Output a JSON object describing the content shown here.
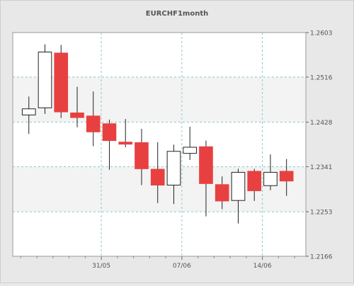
{
  "chart_data": {
    "type": "candlestick",
    "title": "EURCHF1month",
    "xlabel": "",
    "ylabel": "",
    "ylim": [
      1.2166,
      1.2603
    ],
    "y_ticks": [
      "1.2603",
      "1.2516",
      "1.2428",
      "1.2341",
      "1.2253",
      "1.2166"
    ],
    "x_ticks": [
      {
        "label": "31/05",
        "index": 4.5
      },
      {
        "label": "07/06",
        "index": 9.5
      },
      {
        "label": "14/06",
        "index": 14.5
      }
    ],
    "grid": true,
    "colors": {
      "up": "#ffffff",
      "down": "#e84040",
      "grid": "#8ec8c8",
      "background": "#ffffff",
      "frame": "#e8e8e8"
    },
    "candles": [
      {
        "open": 1.2442,
        "high": 1.2478,
        "low": 1.2405,
        "close": 1.2454
      },
      {
        "open": 1.2456,
        "high": 1.258,
        "low": 1.2444,
        "close": 1.2565
      },
      {
        "open": 1.2563,
        "high": 1.2579,
        "low": 1.2436,
        "close": 1.2448
      },
      {
        "open": 1.2446,
        "high": 1.2497,
        "low": 1.2418,
        "close": 1.2437
      },
      {
        "open": 1.244,
        "high": 1.2488,
        "low": 1.2381,
        "close": 1.2409
      },
      {
        "open": 1.2425,
        "high": 1.2433,
        "low": 1.2335,
        "close": 1.2392
      },
      {
        "open": 1.2389,
        "high": 1.2434,
        "low": 1.2379,
        "close": 1.2385
      },
      {
        "open": 1.2388,
        "high": 1.2415,
        "low": 1.2305,
        "close": 1.2337
      },
      {
        "open": 1.2336,
        "high": 1.2389,
        "low": 1.227,
        "close": 1.2305
      },
      {
        "open": 1.2305,
        "high": 1.2384,
        "low": 1.2268,
        "close": 1.2371
      },
      {
        "open": 1.2367,
        "high": 1.2419,
        "low": 1.2354,
        "close": 1.2379
      },
      {
        "open": 1.238,
        "high": 1.2392,
        "low": 1.2244,
        "close": 1.2308
      },
      {
        "open": 1.2306,
        "high": 1.2322,
        "low": 1.2258,
        "close": 1.2274
      },
      {
        "open": 1.2275,
        "high": 1.2337,
        "low": 1.223,
        "close": 1.233
      },
      {
        "open": 1.2332,
        "high": 1.2337,
        "low": 1.2274,
        "close": 1.2294
      },
      {
        "open": 1.2304,
        "high": 1.2365,
        "low": 1.2295,
        "close": 1.233
      },
      {
        "open": 1.2332,
        "high": 1.2356,
        "low": 1.2284,
        "close": 1.2313
      }
    ]
  }
}
